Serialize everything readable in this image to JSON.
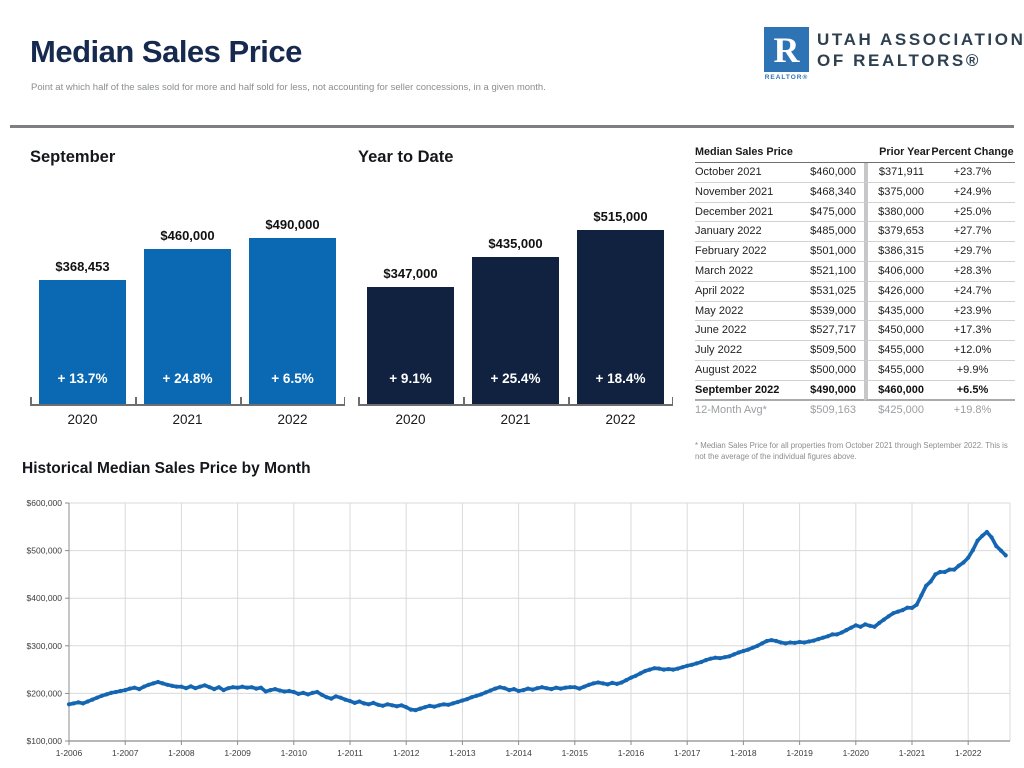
{
  "header": {
    "title": "Median Sales Price",
    "subtitle": "Point at which half of the sales sold for more and half sold for less, not accounting for seller concessions, in a given month.",
    "logo": {
      "r_letter": "R",
      "realtor_label": "REALTOR®",
      "org_line1": "UTAH ASSOCIATION",
      "org_line2": "OF REALTORS®",
      "box_color": "#2e74b5",
      "text_color": "#2e4050"
    }
  },
  "colors": {
    "title_navy": "#16294f",
    "bar_blue": "#0a69b2",
    "bar_navy": "#10223f",
    "line_blue": "#1566b2",
    "gridline": "#dadada",
    "axis": "#8c8c8c",
    "divider_gray": "#7d7f82"
  },
  "chart_data": [
    {
      "type": "bar",
      "title": "September",
      "categories": [
        "2020",
        "2021",
        "2022"
      ],
      "values": [
        368453,
        460000,
        490000
      ],
      "value_labels": [
        "$368,453",
        "$460,000",
        "$490,000"
      ],
      "pct_labels": [
        "+ 13.7%",
        "+ 24.8%",
        "+ 6.5%"
      ],
      "bar_color": "#0a69b2",
      "ylim": [
        0,
        515000
      ]
    },
    {
      "type": "bar",
      "title": "Year to Date",
      "categories": [
        "2020",
        "2021",
        "2022"
      ],
      "values": [
        347000,
        435000,
        515000
      ],
      "value_labels": [
        "$347,000",
        "$435,000",
        "$515,000"
      ],
      "pct_labels": [
        "+ 9.1%",
        "+ 25.4%",
        "+ 18.4%"
      ],
      "bar_color": "#10223f",
      "ylim": [
        0,
        515000
      ]
    },
    {
      "type": "line",
      "title": "Historical Median Sales Price by Month",
      "x_tick_labels": [
        "1-2006",
        "1-2007",
        "1-2008",
        "1-2009",
        "1-2010",
        "1-2011",
        "1-2012",
        "1-2013",
        "1-2014",
        "1-2015",
        "1-2016",
        "1-2017",
        "1-2018",
        "1-2019",
        "1-2020",
        "1-2021",
        "1-2022"
      ],
      "y_tick_labels": [
        "$100,000",
        "$200,000",
        "$300,000",
        "$400,000",
        "$500,000",
        "$600,000"
      ],
      "ylim": [
        100000,
        600000
      ],
      "grid": true,
      "start_month": "2006-01",
      "values": [
        177000,
        179000,
        181000,
        179000,
        183000,
        187000,
        191000,
        195000,
        198000,
        201000,
        203000,
        205000,
        207000,
        210000,
        212000,
        209000,
        214000,
        218000,
        221000,
        224000,
        221000,
        218000,
        216000,
        214000,
        214000,
        211000,
        215000,
        211000,
        214000,
        217000,
        213000,
        209000,
        213000,
        207000,
        211000,
        213000,
        212000,
        214000,
        212000,
        213000,
        210000,
        212000,
        204000,
        207000,
        209000,
        206000,
        204000,
        205000,
        203000,
        199000,
        201000,
        198000,
        201000,
        203000,
        197000,
        192000,
        189000,
        194000,
        191000,
        187000,
        184000,
        180000,
        183000,
        179000,
        177000,
        180000,
        176000,
        174000,
        177000,
        175000,
        173000,
        175000,
        171000,
        166000,
        165000,
        168000,
        171000,
        174000,
        172000,
        175000,
        177000,
        176000,
        179000,
        182000,
        185000,
        188000,
        192000,
        195000,
        198000,
        202000,
        206000,
        210000,
        213000,
        211000,
        207000,
        209000,
        205000,
        207000,
        210000,
        208000,
        211000,
        213000,
        211000,
        209000,
        212000,
        210000,
        212000,
        213000,
        213000,
        210000,
        214000,
        218000,
        221000,
        223000,
        221000,
        219000,
        222000,
        220000,
        223000,
        228000,
        233000,
        237000,
        242000,
        247000,
        250000,
        253000,
        252000,
        250000,
        251000,
        250000,
        252000,
        255000,
        258000,
        260000,
        263000,
        266000,
        270000,
        273000,
        275000,
        274000,
        276000,
        278000,
        282000,
        286000,
        289000,
        292000,
        296000,
        300000,
        305000,
        310000,
        312000,
        310000,
        307000,
        305000,
        307000,
        306000,
        308000,
        307000,
        309000,
        311000,
        314000,
        317000,
        320000,
        324000,
        324000,
        328000,
        333000,
        338000,
        343000,
        340000,
        345000,
        342000,
        340000,
        348000,
        355000,
        362000,
        368453,
        371911,
        375000,
        380000,
        379653,
        386315,
        406000,
        426000,
        435000,
        450000,
        455000,
        455000,
        460000,
        460000,
        468340,
        475000,
        485000,
        501000,
        521100,
        531025,
        539000,
        527717,
        509500,
        500000,
        490000
      ]
    }
  ],
  "table": {
    "headers": {
      "col1": "Median Sales Price",
      "col3": "Prior Year",
      "col4": "Percent Change"
    },
    "rows": [
      {
        "label": "October 2021",
        "value": "$460,000",
        "prior": "$371,911",
        "change": "+23.7%",
        "bold": false,
        "muted": false
      },
      {
        "label": "November 2021",
        "value": "$468,340",
        "prior": "$375,000",
        "change": "+24.9%",
        "bold": false,
        "muted": false
      },
      {
        "label": "December 2021",
        "value": "$475,000",
        "prior": "$380,000",
        "change": "+25.0%",
        "bold": false,
        "muted": false
      },
      {
        "label": "January 2022",
        "value": "$485,000",
        "prior": "$379,653",
        "change": "+27.7%",
        "bold": false,
        "muted": false
      },
      {
        "label": "February 2022",
        "value": "$501,000",
        "prior": "$386,315",
        "change": "+29.7%",
        "bold": false,
        "muted": false
      },
      {
        "label": "March 2022",
        "value": "$521,100",
        "prior": "$406,000",
        "change": "+28.3%",
        "bold": false,
        "muted": false
      },
      {
        "label": "April 2022",
        "value": "$531,025",
        "prior": "$426,000",
        "change": "+24.7%",
        "bold": false,
        "muted": false
      },
      {
        "label": "May 2022",
        "value": "$539,000",
        "prior": "$435,000",
        "change": "+23.9%",
        "bold": false,
        "muted": false
      },
      {
        "label": "June 2022",
        "value": "$527,717",
        "prior": "$450,000",
        "change": "+17.3%",
        "bold": false,
        "muted": false
      },
      {
        "label": "July 2022",
        "value": "$509,500",
        "prior": "$455,000",
        "change": "+12.0%",
        "bold": false,
        "muted": false
      },
      {
        "label": "August 2022",
        "value": "$500,000",
        "prior": "$455,000",
        "change": "+9.9%",
        "bold": false,
        "muted": false
      },
      {
        "label": "September 2022",
        "value": "$490,000",
        "prior": "$460,000",
        "change": "+6.5%",
        "bold": true,
        "muted": false
      },
      {
        "label": "12-Month Avg*",
        "value": "$509,163",
        "prior": "$425,000",
        "change": "+19.8%",
        "bold": false,
        "muted": true
      }
    ],
    "footnote": "* Median Sales Price for all properties from October 2021 through September 2022. This is not the average of the individual figures above."
  },
  "sections": {
    "september_title": "September",
    "ytd_title": "Year to Date",
    "historical_title": "Historical Median Sales Price by Month"
  }
}
